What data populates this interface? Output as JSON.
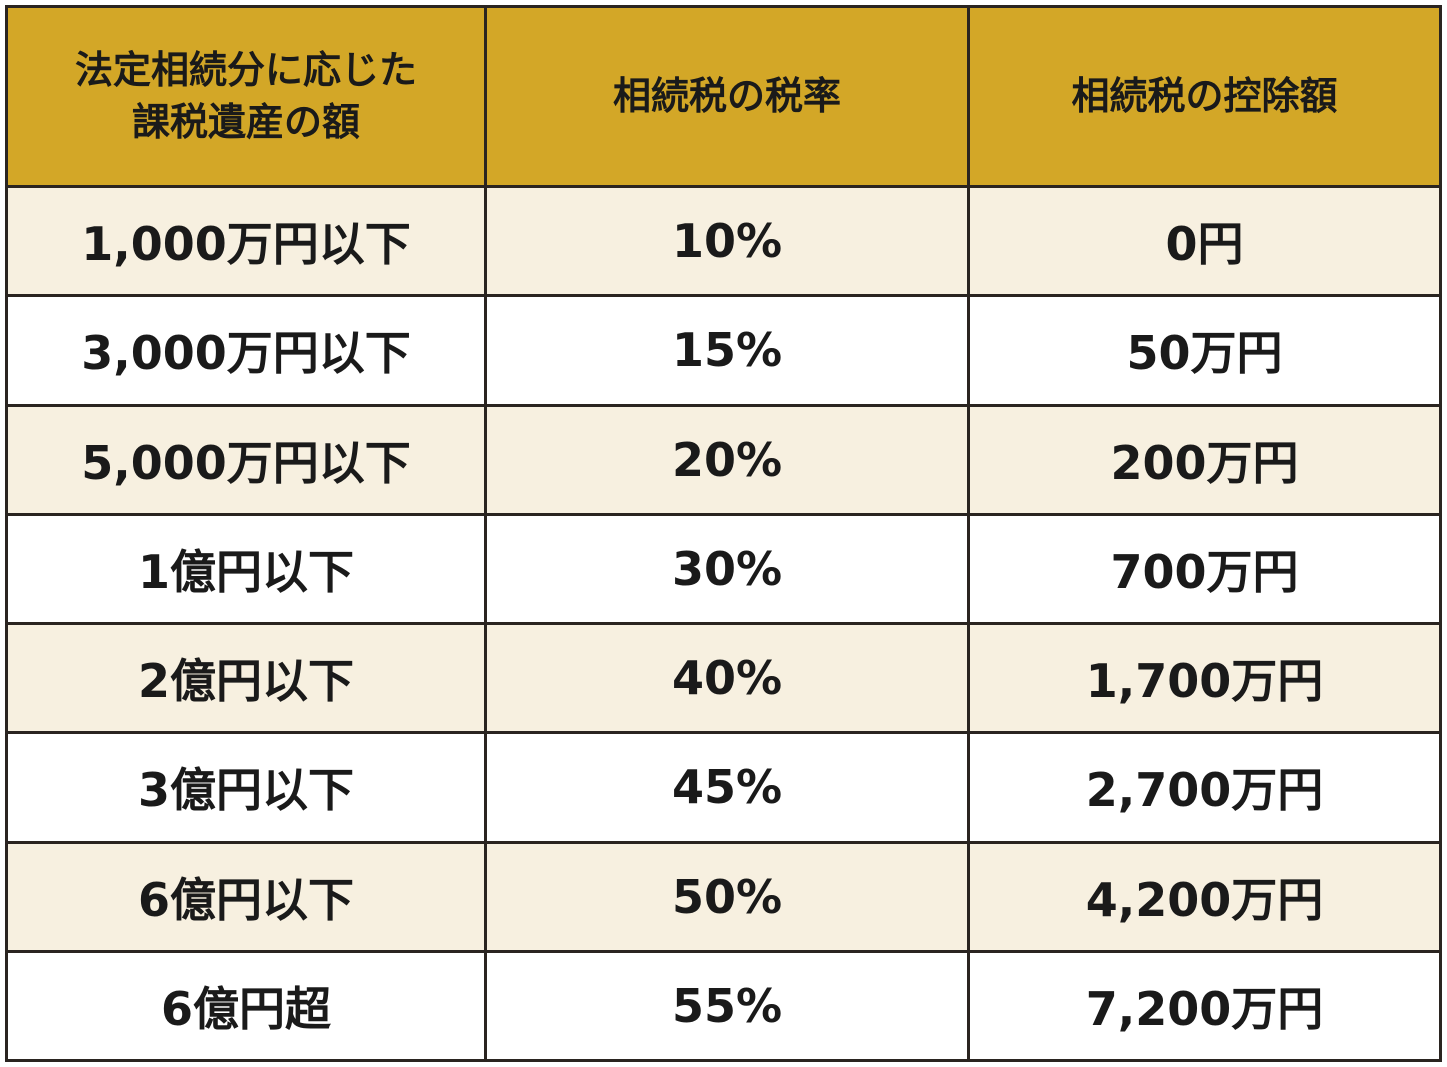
{
  "colors": {
    "header_bg": "#d3a727",
    "row_cream": "#f7f0e0",
    "row_white": "#ffffff",
    "border": "#2a2420"
  },
  "headers": [
    "法定相続分に応じた\n課税遺産の額",
    "相続税の税率",
    "相続税の控除額"
  ],
  "rows": [
    {
      "amount": "1,000万円以下",
      "rate": "10%",
      "deduction": "0円"
    },
    {
      "amount": "3,000万円以下",
      "rate": "15%",
      "deduction": "50万円"
    },
    {
      "amount": "5,000万円以下",
      "rate": "20%",
      "deduction": "200万円"
    },
    {
      "amount": "1億円以下",
      "rate": "30%",
      "deduction": "700万円"
    },
    {
      "amount": "2億円以下",
      "rate": "40%",
      "deduction": "1,700万円"
    },
    {
      "amount": "3億円以下",
      "rate": "45%",
      "deduction": "2,700万円"
    },
    {
      "amount": "6億円以下",
      "rate": "50%",
      "deduction": "4,200万円"
    },
    {
      "amount": "6億円超",
      "rate": "55%",
      "deduction": "7,200万円"
    }
  ]
}
